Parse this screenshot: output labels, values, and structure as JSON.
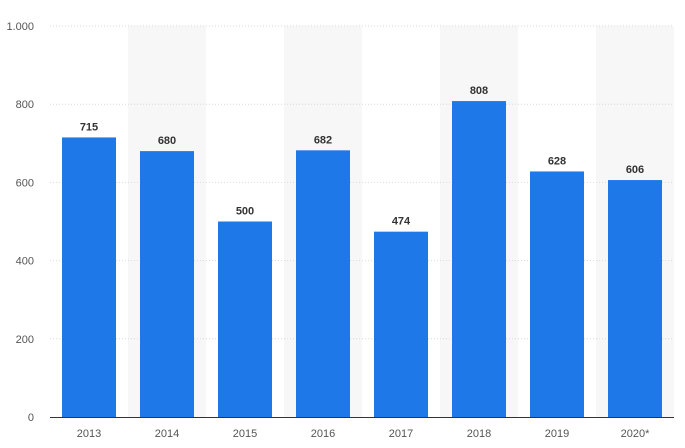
{
  "chart_data": {
    "type": "bar",
    "categories": [
      "2013",
      "2014",
      "2015",
      "2016",
      "2017",
      "2018",
      "2019",
      "2020*"
    ],
    "values": [
      715,
      680,
      500,
      682,
      474,
      808,
      628,
      606
    ],
    "value_labels": [
      "715",
      "680",
      "500",
      "682",
      "474",
      "808",
      "628",
      "606"
    ],
    "ylim": [
      0,
      1000
    ],
    "yticks": [
      0,
      200,
      400,
      600,
      800,
      1000
    ],
    "ytick_labels": [
      "0",
      "200",
      "400",
      "600",
      "800",
      "1.000"
    ],
    "grid": true,
    "alternating_column_bands": true,
    "colors": {
      "bar": "#1f78e8",
      "band": "#f7f7f7",
      "grid": "#d9d9d9",
      "axis": "#333333",
      "value_text": "#333333",
      "tick_text": "#555555"
    }
  }
}
